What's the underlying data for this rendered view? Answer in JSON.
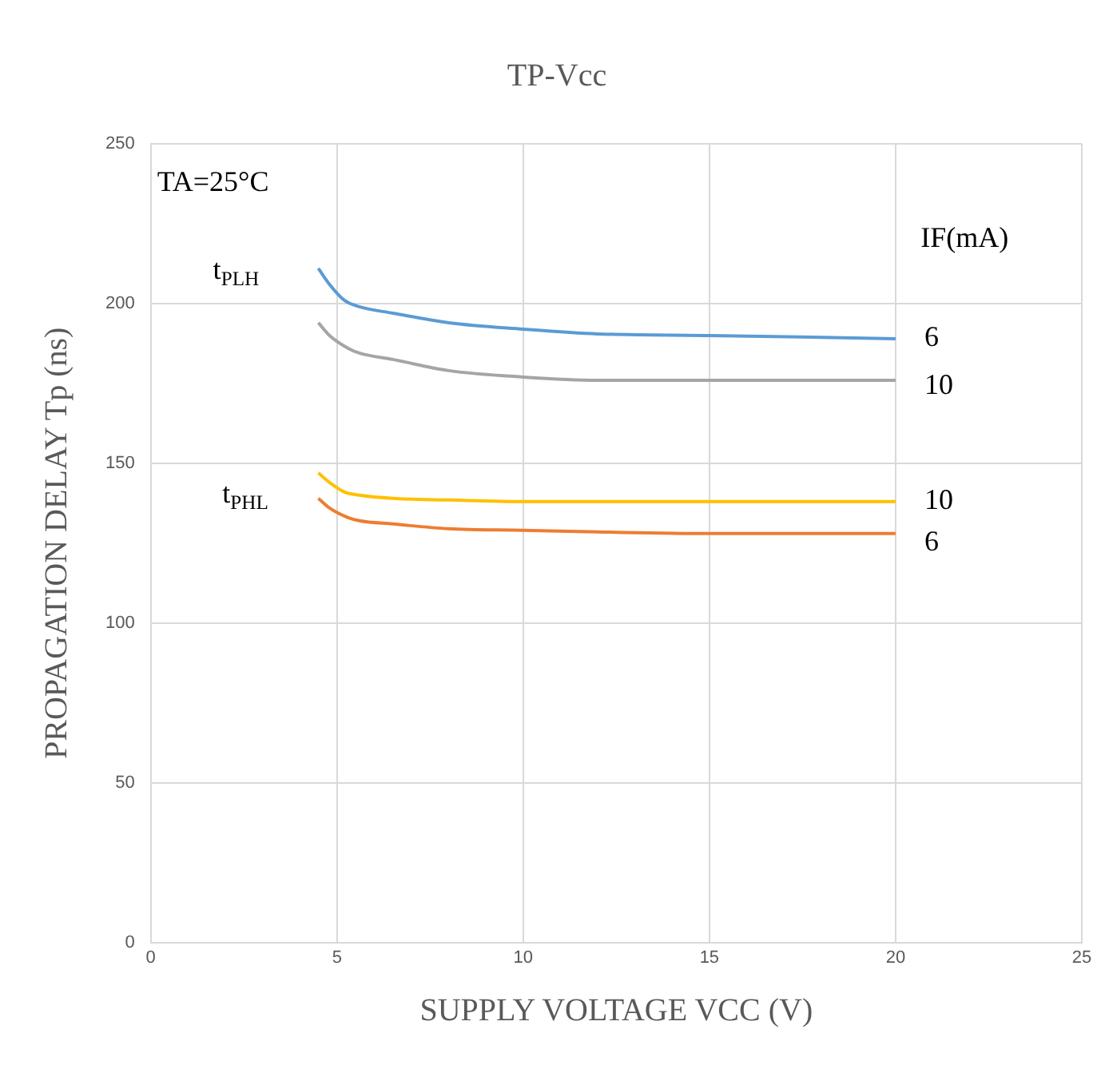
{
  "chart_data": {
    "type": "line",
    "title": "TP-Vcc",
    "xlabel": "SUPPLY VOLTAGE VCC (V)",
    "ylabel": "PROPAGATION DELAY Tp (ns)",
    "xlim": [
      0,
      25
    ],
    "xticks": [
      0,
      5,
      10,
      15,
      20,
      25
    ],
    "ylim": [
      0,
      250
    ],
    "yticks": [
      0,
      50,
      100,
      150,
      200,
      250
    ],
    "grid": true,
    "legend": false,
    "marker": "none",
    "series": [
      {
        "name": "6",
        "color": "#5b9bd5",
        "x": [
          4.5,
          4.8,
          5.2,
          5.6,
          6.5,
          8,
          10,
          12,
          15,
          20
        ],
        "values": [
          211,
          206,
          201,
          199,
          197,
          194,
          192,
          190.5,
          190,
          189
        ]
      },
      {
        "name": "10",
        "color": "#a5a5a5",
        "x": [
          4.5,
          4.8,
          5.3,
          5.6,
          6.5,
          8,
          10,
          12,
          15,
          20
        ],
        "values": [
          194,
          190,
          186,
          184.5,
          182.5,
          179,
          177,
          176,
          176,
          176
        ]
      },
      {
        "name": "10",
        "color": "#ffc000",
        "x": [
          4.5,
          4.8,
          5.2,
          5.6,
          6.5,
          8,
          10,
          12,
          15,
          20
        ],
        "values": [
          147,
          144,
          141,
          140,
          139,
          138.5,
          138,
          138,
          138,
          138
        ]
      },
      {
        "name": "6",
        "color": "#ed7d31",
        "x": [
          4.5,
          4.8,
          5.3,
          5.6,
          6.5,
          8,
          10,
          12,
          15,
          20
        ],
        "values": [
          139,
          136,
          133,
          132,
          131,
          129.5,
          129,
          128.5,
          128,
          128
        ]
      }
    ],
    "annotations": [
      "TA=25°C",
      "IF(mA)",
      "t$_{PLH}$",
      "t$_{PHL}$"
    ]
  }
}
